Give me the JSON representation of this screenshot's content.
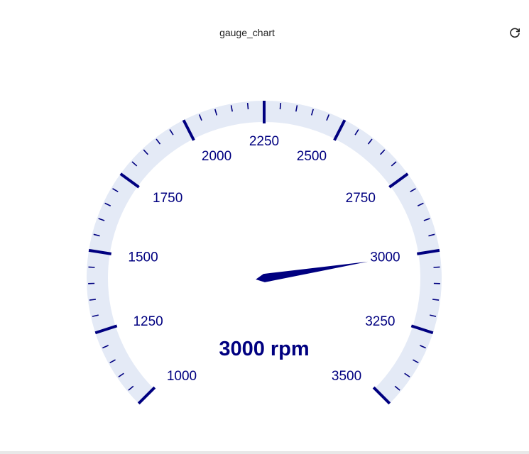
{
  "panel": {
    "title": "gauge_chart",
    "refresh_icon": "refresh-icon"
  },
  "colors": {
    "band": "#e4eaf6",
    "accent": "#000080",
    "background": "#ffffff"
  },
  "chart_data": {
    "type": "gauge",
    "min": 1000,
    "max": 3500,
    "value": 3000,
    "unit": "rpm",
    "value_label": "3000 rpm",
    "major_ticks": [
      1000,
      1250,
      1500,
      1750,
      2000,
      2250,
      2500,
      2750,
      3000,
      3250,
      3500
    ],
    "tick_labels": [
      "1000",
      "1250",
      "1500",
      "1750",
      "2000",
      "2250",
      "2500",
      "2750",
      "3000",
      "3250",
      "3500"
    ],
    "minor_per_major": 5
  }
}
